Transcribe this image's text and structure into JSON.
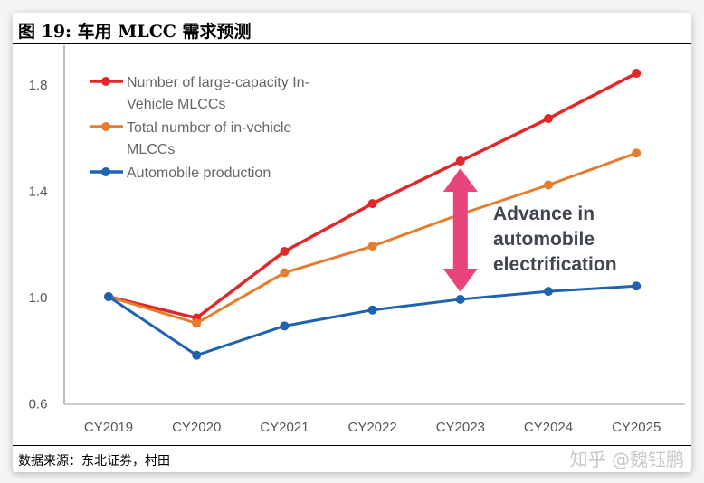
{
  "title": "图 19: 车用 MLCC 需求预测",
  "source": "数据来源：东北证券，村田",
  "watermark": "知乎 @魏钰鹏",
  "chart_data": {
    "type": "line",
    "categories": [
      "CY2019",
      "CY2020",
      "CY2021",
      "CY2022",
      "CY2023",
      "CY2024",
      "CY2025"
    ],
    "ylim": [
      0.6,
      1.9
    ],
    "yticks": [
      "0.6",
      "1.0",
      "1.4",
      "1.8"
    ],
    "ytick_values": [
      0.6,
      1.0,
      1.4,
      1.8
    ],
    "grid": false,
    "legend_placement": "top-left",
    "series": [
      {
        "name": "Number of large-capacity In-Vehicle MLCCs",
        "legend_lines": [
          "Number of large-capacity In-",
          "Vehicle MLCCs"
        ],
        "color": "#e0282a",
        "values": [
          1.0,
          0.92,
          1.17,
          1.35,
          1.51,
          1.67,
          1.84
        ]
      },
      {
        "name": "Total number of in-vehicle MLCCs",
        "legend_lines": [
          "Total number of in-vehicle",
          "MLCCs"
        ],
        "color": "#e67c2e",
        "values": [
          1.0,
          0.9,
          1.09,
          1.19,
          1.31,
          1.42,
          1.54
        ]
      },
      {
        "name": "Automobile production",
        "legend_lines": [
          "Automobile production"
        ],
        "color": "#1f63b0",
        "values": [
          1.0,
          0.78,
          0.89,
          0.95,
          0.99,
          1.02,
          1.04
        ]
      }
    ],
    "annotation": {
      "lines": [
        "Advance in",
        "automobile",
        "electrification"
      ],
      "arrow_color": "#e8457a",
      "arrow_at": "CY2023"
    }
  }
}
